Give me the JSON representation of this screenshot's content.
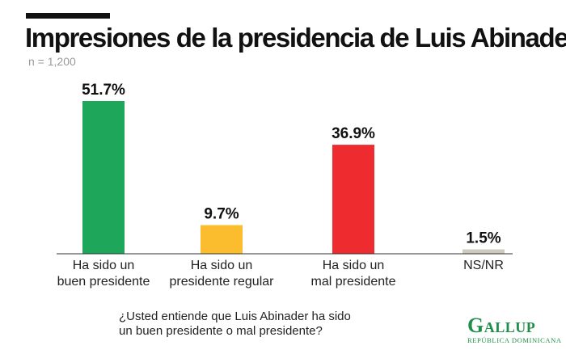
{
  "header": {
    "title": "Impresiones de la presidencia de Luis Abinader",
    "subtitle": "n = 1,200"
  },
  "footer": {
    "question_line1": "¿Usted entiende que Luis Abinader ha sido",
    "question_line2": "un buen presidente o mal presidente?"
  },
  "logo": {
    "name": "Gallup",
    "sub": "República Dominicana"
  },
  "colors": {
    "accent": "#1e8f4a",
    "bar_good": "#1ea75a",
    "bar_regular": "#fbbd2d",
    "bar_bad": "#ee2b2e",
    "bar_nsnr": "#cfcac0"
  },
  "chart_data": {
    "type": "bar",
    "categories": [
      [
        "Ha sido un",
        "buen presidente"
      ],
      [
        "Ha sido un",
        "presidente regular"
      ],
      [
        "Ha sido un",
        "mal presidente"
      ],
      [
        "NS/NR"
      ]
    ],
    "values": [
      51.7,
      9.7,
      36.9,
      1.5
    ],
    "value_labels": [
      "51.7%",
      "9.7%",
      "36.9%",
      "1.5%"
    ],
    "bar_colors": [
      "#1ea75a",
      "#fbbd2d",
      "#ee2b2e",
      "#cfcac0"
    ],
    "ylim": [
      0,
      51.7
    ],
    "grid": false,
    "legend": "none"
  }
}
